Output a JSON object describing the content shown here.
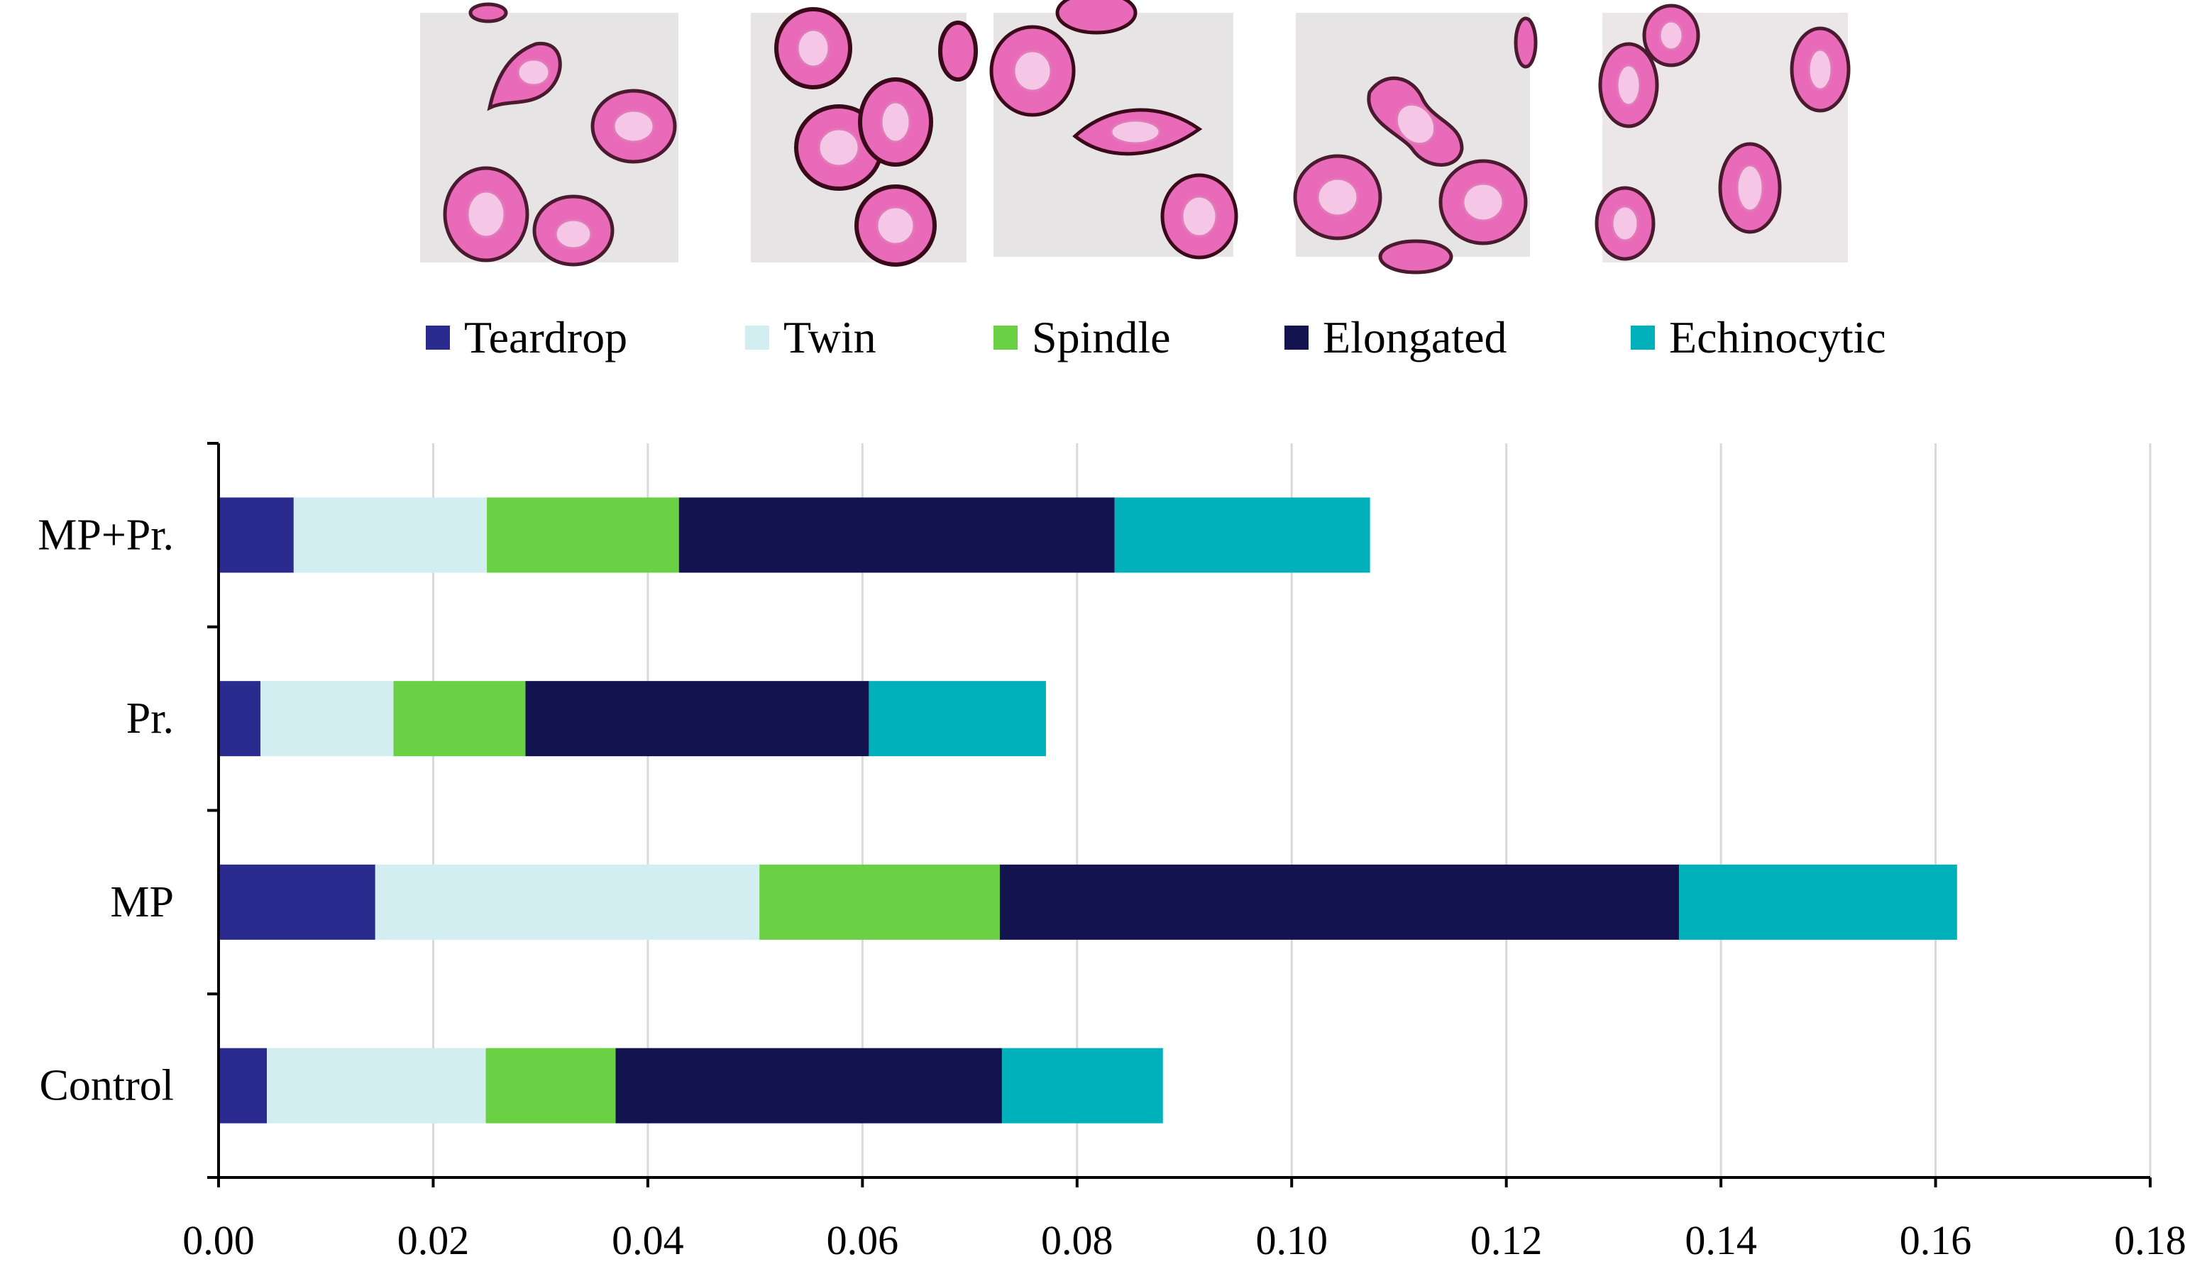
{
  "chart_data": {
    "type": "bar",
    "orientation": "horizontal",
    "stacked": true,
    "title": "",
    "xlabel": "",
    "ylabel": "",
    "xlim": [
      0,
      0.18
    ],
    "xticks": [
      "0.00",
      "0.02",
      "0.04",
      "0.06",
      "0.08",
      "0.10",
      "0.12",
      "0.14",
      "0.16",
      "0.18"
    ],
    "grid": "vertical",
    "legend_position": "top",
    "categories": [
      "MP+Pr.",
      "Pr.",
      "MP",
      "Control"
    ],
    "series": [
      {
        "name": "Teardrop",
        "color": "#2b2b8f",
        "values": [
          0.007,
          0.0039,
          0.0146,
          0.0045
        ]
      },
      {
        "name": "Twin",
        "color": "#d3eef0",
        "values": [
          0.018,
          0.0124,
          0.0358,
          0.0204
        ]
      },
      {
        "name": "Spindle",
        "color": "#6ad044",
        "values": [
          0.0179,
          0.0123,
          0.0224,
          0.0121
        ]
      },
      {
        "name": "Elongated",
        "color": "#13134f",
        "values": [
          0.0406,
          0.032,
          0.0633,
          0.036
        ]
      },
      {
        "name": "Echinocytic",
        "color": "#00b1bb",
        "values": [
          0.0238,
          0.0165,
          0.0259,
          0.015
        ]
      }
    ],
    "cell_images": [
      "teardrop-cell-image",
      "twin-cell-image",
      "spindle-cell-image",
      "elongated-cell-image",
      "echinocytic-cell-image"
    ]
  }
}
